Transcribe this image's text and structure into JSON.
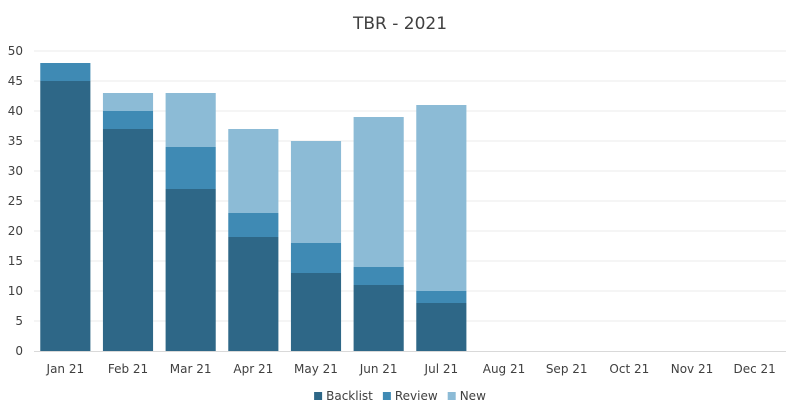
{
  "chart_data": {
    "type": "bar",
    "stacked": true,
    "title": "TBR - 2021",
    "xlabel": "",
    "ylabel": "",
    "ylim": [
      0,
      50
    ],
    "yticks": [
      0,
      5,
      10,
      15,
      20,
      25,
      30,
      35,
      40,
      45,
      50
    ],
    "grid": true,
    "legend_position": "bottom",
    "categories": [
      "Jan 21",
      "Feb 21",
      "Mar 21",
      "Apr 21",
      "May 21",
      "Jun 21",
      "Jul 21",
      "Aug 21",
      "Sep 21",
      "Oct 21",
      "Nov 21",
      "Dec 21"
    ],
    "series": [
      {
        "name": "Backlist",
        "color": "#2e6787",
        "values": [
          45,
          37,
          27,
          19,
          13,
          11,
          8,
          null,
          null,
          null,
          null,
          null
        ]
      },
      {
        "name": "Review",
        "color": "#3f8ab4",
        "values": [
          3,
          3,
          7,
          4,
          5,
          3,
          2,
          null,
          null,
          null,
          null,
          null
        ]
      },
      {
        "name": "New",
        "color": "#8cbbd6",
        "values": [
          0,
          3,
          9,
          14,
          17,
          25,
          31,
          null,
          null,
          null,
          null,
          null
        ]
      }
    ]
  }
}
